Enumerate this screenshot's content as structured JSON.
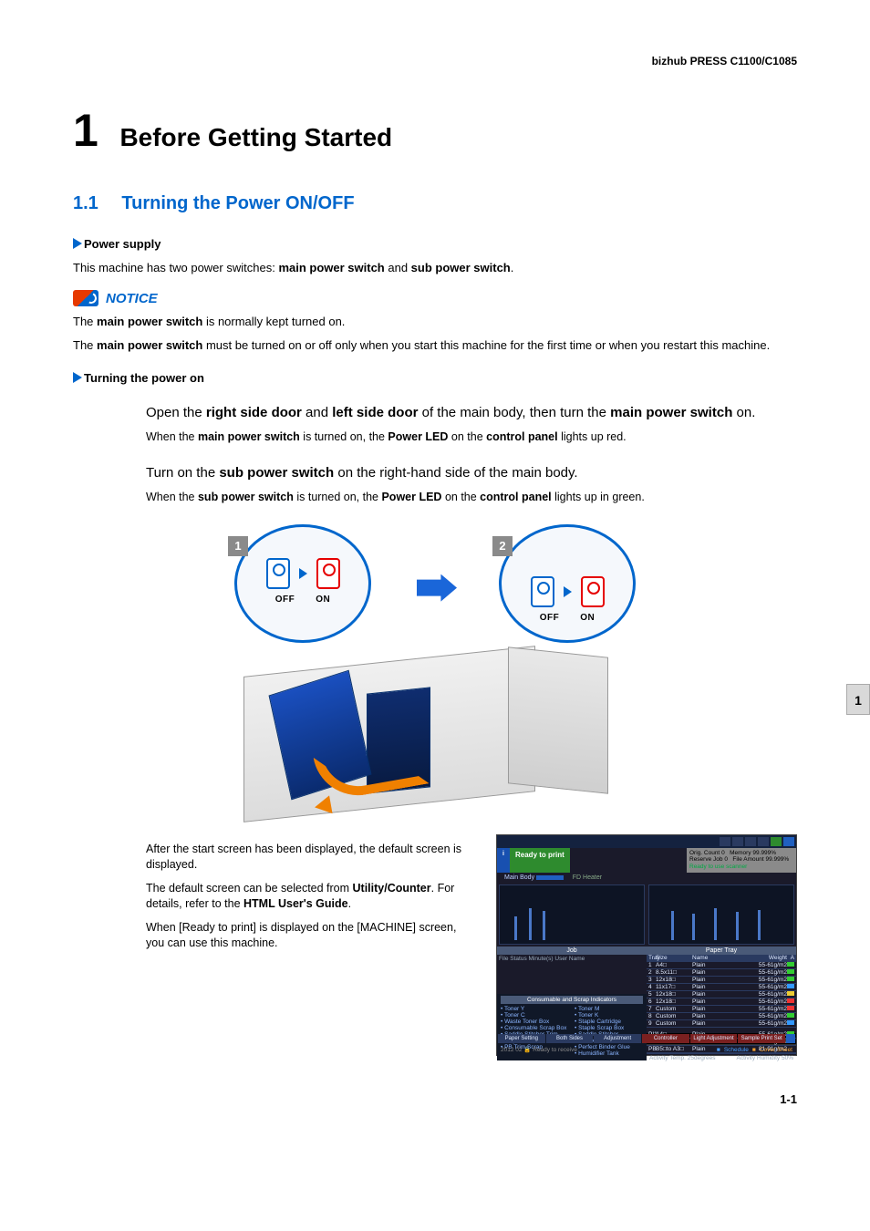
{
  "header": {
    "product": "bizhub PRESS C1100/C1085"
  },
  "chapter": {
    "number": "1",
    "title": "Before Getting Started"
  },
  "section": {
    "number": "1.1",
    "title": "Turning the Power ON/OFF"
  },
  "sub1": {
    "heading": "Power supply",
    "p1_pre": "This machine has two power switches: ",
    "p1_b1": "main power switch",
    "p1_mid": " and ",
    "p1_b2": "sub power switch",
    "p1_post": "."
  },
  "notice": {
    "label": "NOTICE",
    "l1_pre": "The ",
    "l1_b": "main power switch",
    "l1_post": " is normally kept turned on.",
    "l2_pre": "The ",
    "l2_b": "main power switch",
    "l2_post": " must be turned on or off only when you start this machine for the first time or when you restart this machine."
  },
  "sub2": {
    "heading": "Turning the power on"
  },
  "step1": {
    "lead_pre": "Open the ",
    "lead_b1": "right side door",
    "lead_mid1": " and ",
    "lead_b2": "left side door",
    "lead_mid2": " of the main body, then turn the ",
    "lead_b3": "main power switch",
    "lead_post": " on.",
    "sub_pre": "When the ",
    "sub_b1": "main power switch",
    "sub_mid1": " is turned on, the ",
    "sub_b2": "Power LED",
    "sub_mid2": " on the ",
    "sub_b3": "control panel",
    "sub_post": " lights up red."
  },
  "step2": {
    "lead_pre": "Turn on the ",
    "lead_b1": "sub power switch",
    "lead_post": " on the right-hand side of the main body.",
    "sub_pre": "When the ",
    "sub_b1": "sub power switch",
    "sub_mid1": " is turned on, the ",
    "sub_b2": "Power LED",
    "sub_mid2": " on the ",
    "sub_b3": "control panel",
    "sub_post": " lights up in green."
  },
  "diagram": {
    "badge1": "1",
    "badge2": "2",
    "off": "OFF",
    "on": "ON"
  },
  "lower": {
    "p1": "After the start screen has been displayed, the default screen is displayed.",
    "p2_pre": "The default screen can be selected from ",
    "p2_b1": "Utility/Counter",
    "p2_mid": ". For details, refer to the ",
    "p2_b2": "HTML User's Guide",
    "p2_post": ".",
    "p3": "When [Ready to print] is displayed on the [MACHINE] screen, you can use this machine."
  },
  "screen": {
    "ready": "Ready to print",
    "mainbody": "Main Body",
    "fdheater": "FD Heater",
    "meta_l1a": "Orig. Count",
    "meta_l1b": "0",
    "meta_l1c": "Memory",
    "meta_l1d": "99.999%",
    "meta_l2a": "Reserve Job",
    "meta_l2b": "0",
    "meta_l2c": "File Amount",
    "meta_l2d": "99.999%",
    "meta_l3": "Ready to use scanner",
    "job_header": "Job",
    "job_cols": "File    Status    Minute(s)    User Name",
    "pt_header": "Paper Tray",
    "pt_cols_tray": "Tray",
    "pt_cols_size": "Size",
    "pt_cols_name": "Name",
    "pt_cols_weight": "Weight",
    "pt_cols_amt": "Amount",
    "trays": [
      {
        "n": "1",
        "size": "A4□",
        "name": "Plain",
        "w": "55-61g/m2",
        "pip": "pg"
      },
      {
        "n": "2",
        "size": "8.5x11□",
        "name": "Plain",
        "w": "55-61g/m2",
        "pip": "pg"
      },
      {
        "n": "3",
        "size": "12x18□",
        "name": "Plain",
        "w": "55-61g/m2",
        "pip": "pg"
      },
      {
        "n": "4",
        "size": "11x17□",
        "name": "Plain",
        "w": "55-61g/m2",
        "pip": "pb"
      },
      {
        "n": "5",
        "size": "12x18□",
        "name": "Plain",
        "w": "55-61g/m2",
        "pip": "py"
      },
      {
        "n": "6",
        "size": "12x18□",
        "name": "Plain",
        "w": "55-61g/m2",
        "pip": "pr"
      },
      {
        "n": "7",
        "size": "Custom",
        "name": "Plain",
        "w": "55-61g/m2",
        "pip": "pr"
      },
      {
        "n": "8",
        "size": "Custom",
        "name": "Plain",
        "w": "55-61g/m2",
        "pip": "pg"
      },
      {
        "n": "9",
        "size": "Custom",
        "name": "Plain",
        "w": "55-61g/m2",
        "pip": "pb"
      }
    ],
    "pi": [
      {
        "n": "PI1",
        "size": "A4□",
        "name": "Plain",
        "w": "55-61g/m2",
        "pip": "pg"
      },
      {
        "n": "PI2",
        "size": "A4□",
        "name": "Plain",
        "w": "55-61g/m2",
        "pip": "pg"
      },
      {
        "n": "PB",
        "size": "B5□to A3□",
        "name": "Plain",
        "w": "81-91g/m2",
        "pip": ""
      }
    ],
    "cons_header": "Consumable and Scrap Indicators",
    "cons_left": [
      "Toner Y",
      "Toner C",
      "Waste Toner Box",
      "Consumable Scrap Box",
      "Saddle Stitcher Trim Scrap",
      "PB Trim Scrap"
    ],
    "cons_right": [
      "Toner M",
      "Toner K",
      "Staple Cartridge",
      "Staple Scrap Box",
      "Saddle Stitcher Receiver",
      "Perfect Binder Glue",
      "Humidifier Tank"
    ],
    "footer_act_t": "Activity Temp.",
    "footer_act_v": "25degrees",
    "footer_hum_t": "Activity Humidity",
    "footer_hum_v": "50%",
    "btn1": "Paper Setting",
    "btn2": "Both Sides",
    "btn3": "Adjustment",
    "btn4": "Controller",
    "btn5": "Light Adjustment",
    "btn6": "Sample Print Set",
    "foot_left": "2012 02",
    "foot_mid": "Ready to receive",
    "foot_r1": "Schedule",
    "foot_r2": "Cover Sheet"
  },
  "sidetab": "1",
  "pagenum": "1-1",
  "colors": {
    "accent_blue": "#0066cc",
    "notice_orange": "#e63900",
    "machine_blue": "#1a4fbf",
    "arrow_orange": "#f08000",
    "screen_bg": "#1a1a2a",
    "screen_green": "#2e8b2e"
  }
}
